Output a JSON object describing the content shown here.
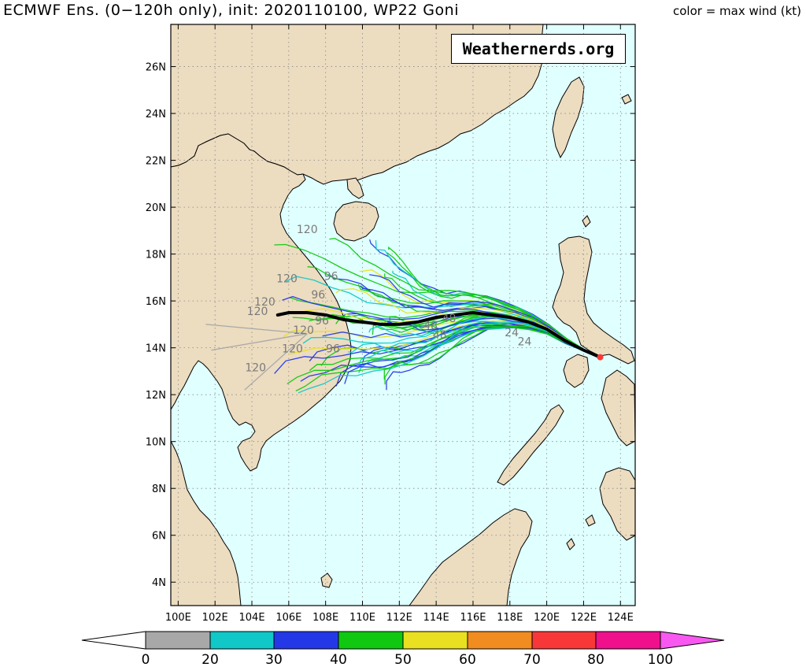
{
  "header": {
    "title": "ECMWF Ens. (0−120h only), init: 2020110100, WP22 Goni",
    "color_caption": "color = max wind (kt)"
  },
  "watermark": "Weathernerds.org",
  "map": {
    "lon_range": [
      99.6,
      124.8
    ],
    "lat_range": [
      3.0,
      27.8
    ],
    "lat_ticks": [
      "4N",
      "6N",
      "8N",
      "10N",
      "12N",
      "14N",
      "16N",
      "18N",
      "20N",
      "22N",
      "24N",
      "26N"
    ],
    "lon_ticks": [
      "100E",
      "102E",
      "104E",
      "106E",
      "108E",
      "110E",
      "112E",
      "114E",
      "116E",
      "118E",
      "120E",
      "122E",
      "124E"
    ],
    "ocean_color": "#e0ffff",
    "land_color": "#ecdcc0"
  },
  "colorbar": {
    "labels": [
      "0",
      "20",
      "30",
      "40",
      "50",
      "60",
      "70",
      "80",
      "100"
    ],
    "colors": [
      "#a8a8a8",
      "#10c8c8",
      "#2438e8",
      "#10c810",
      "#e8e020",
      "#f08c20",
      "#f83838",
      "#f0108c"
    ],
    "end_left_color": "#ffffff",
    "end_right_color": "#f858f0"
  },
  "track_labels": [
    {
      "text": "120",
      "lon": 107.0,
      "lat": 18.9
    },
    {
      "text": "96",
      "lon": 108.3,
      "lat": 16.9
    },
    {
      "text": "120",
      "lon": 105.9,
      "lat": 16.8
    },
    {
      "text": "96",
      "lon": 107.6,
      "lat": 16.1
    },
    {
      "text": "120",
      "lon": 104.7,
      "lat": 15.8
    },
    {
      "text": "120",
      "lon": 104.3,
      "lat": 15.4
    },
    {
      "text": "96",
      "lon": 107.8,
      "lat": 15.0
    },
    {
      "text": "120",
      "lon": 106.8,
      "lat": 14.6
    },
    {
      "text": "120",
      "lon": 106.2,
      "lat": 13.8
    },
    {
      "text": "96",
      "lon": 108.4,
      "lat": 13.8
    },
    {
      "text": "120",
      "lon": 104.2,
      "lat": 13.0
    },
    {
      "text": "48",
      "lon": 114.7,
      "lat": 15.1
    },
    {
      "text": "48",
      "lon": 113.7,
      "lat": 14.8
    },
    {
      "text": "48",
      "lon": 114.2,
      "lat": 14.4
    },
    {
      "text": "24",
      "lon": 118.1,
      "lat": 14.5
    },
    {
      "text": "24",
      "lon": 118.8,
      "lat": 14.1
    }
  ],
  "ensemble_mean_track": [
    [
      122.9,
      13.6
    ],
    [
      122.0,
      13.9
    ],
    [
      121.0,
      14.3
    ],
    [
      120.0,
      14.8
    ],
    [
      119.0,
      15.1
    ],
    [
      118.0,
      15.3
    ],
    [
      117.0,
      15.4
    ],
    [
      116.0,
      15.5
    ],
    [
      115.0,
      15.4
    ],
    [
      114.0,
      15.3
    ],
    [
      113.0,
      15.1
    ],
    [
      112.0,
      15.0
    ],
    [
      111.0,
      15.0
    ],
    [
      110.0,
      15.1
    ],
    [
      109.0,
      15.2
    ],
    [
      108.0,
      15.4
    ],
    [
      107.0,
      15.5
    ],
    [
      106.0,
      15.5
    ],
    [
      105.4,
      15.4
    ]
  ]
}
